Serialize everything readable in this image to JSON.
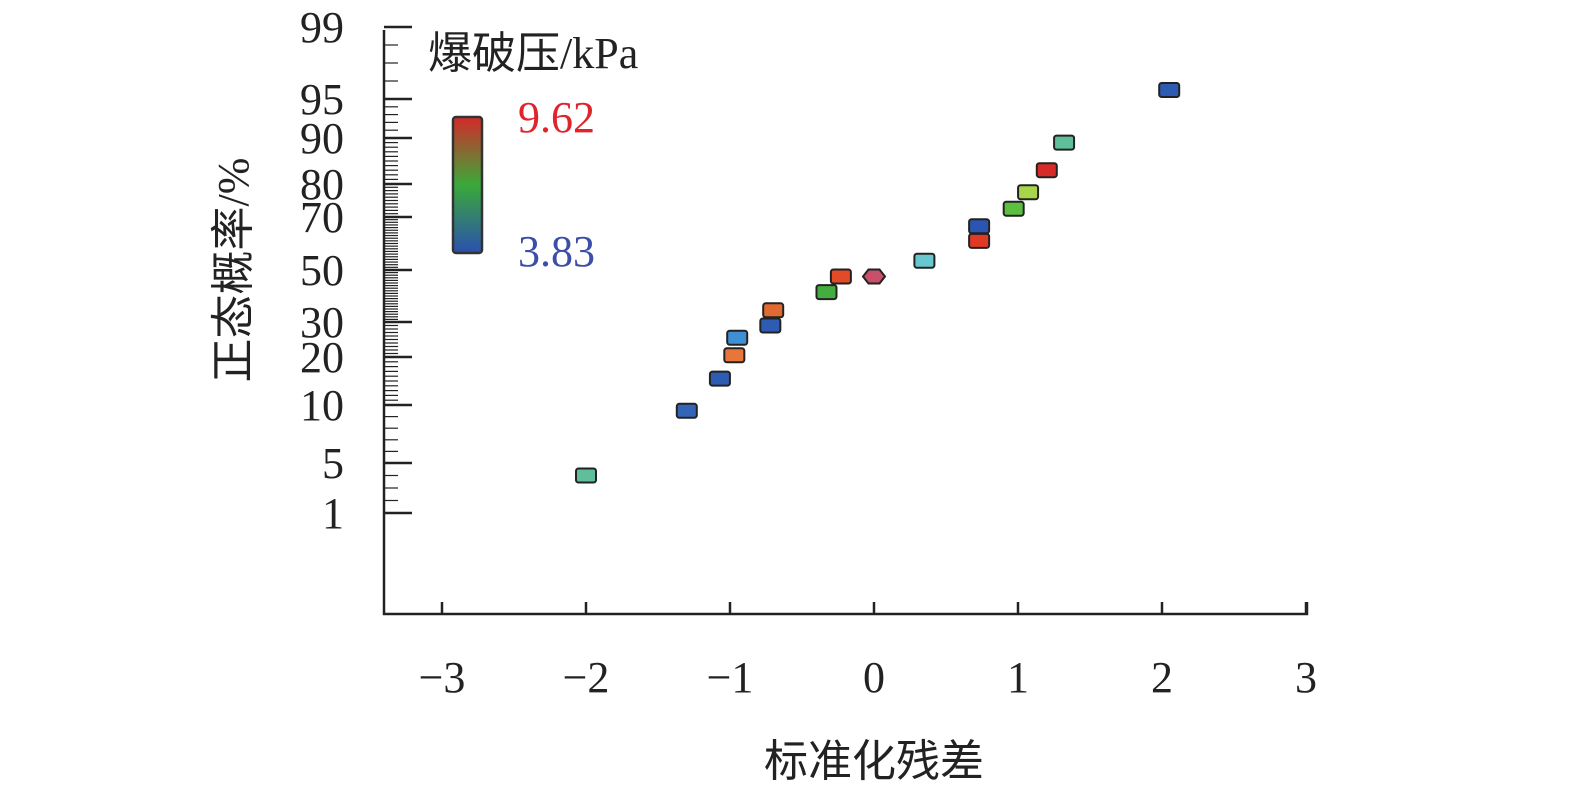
{
  "chart_data": {
    "type": "scatter",
    "title": "",
    "xlabel": "标准化残差",
    "ylabel": "正态概率/%",
    "xlim": [
      -3.4,
      3.0
    ],
    "x_ticks": [
      -3,
      -2,
      -1,
      0,
      1,
      2,
      3
    ],
    "x_tick_labels": [
      "−3",
      "−2",
      "−1",
      "0",
      "1",
      "2",
      "3"
    ],
    "y_scale": "probability",
    "y_ticks": [
      1,
      5,
      10,
      20,
      30,
      50,
      70,
      80,
      90,
      95,
      99
    ],
    "y_tick_labels": [
      "1",
      "5",
      "10",
      "20",
      "30",
      "50",
      "70",
      "80",
      "90",
      "95",
      "99"
    ],
    "colorbar": {
      "title": "爆破压/kPa",
      "max_label": "9.62",
      "min_label": "3.83",
      "max": 9.62,
      "min": 3.83,
      "colors": [
        "#d42a2a",
        "#3aa93a",
        "#2c4fb0"
      ],
      "max_color": "#e0242c",
      "min_color": "#3b4ea8"
    },
    "series": [
      {
        "points": [
          {
            "x": -2.0,
            "y": 4.0,
            "color": "#5fbf9a"
          },
          {
            "x": -1.3,
            "y": 9.5,
            "color": "#3464b8"
          },
          {
            "x": -1.07,
            "y": 15.5,
            "color": "#2f5cb3"
          },
          {
            "x": -0.97,
            "y": 20.5,
            "color": "#e8763a"
          },
          {
            "x": -0.95,
            "y": 25.5,
            "color": "#3f8fd4"
          },
          {
            "x": -0.72,
            "y": 29.0,
            "color": "#2f5cb3"
          },
          {
            "x": -0.7,
            "y": 34.5,
            "color": "#e06a32"
          },
          {
            "x": -0.33,
            "y": 41.5,
            "color": "#44ad3f"
          },
          {
            "x": -0.23,
            "y": 47.5,
            "color": "#e34a28"
          },
          {
            "x": 0.0,
            "y": 47.5,
            "color": "#c8506a",
            "shape": "hexagon"
          },
          {
            "x": 0.35,
            "y": 53.5,
            "color": "#69c7cf"
          },
          {
            "x": 0.73,
            "y": 61.0,
            "color": "#e03a26"
          },
          {
            "x": 0.73,
            "y": 66.5,
            "color": "#2b55b0"
          },
          {
            "x": 0.97,
            "y": 72.5,
            "color": "#5cbf3e"
          },
          {
            "x": 1.07,
            "y": 77.5,
            "color": "#a6d44a"
          },
          {
            "x": 1.2,
            "y": 83.0,
            "color": "#d92a2a"
          },
          {
            "x": 1.32,
            "y": 89.0,
            "color": "#5fbf9a"
          },
          {
            "x": 2.05,
            "y": 95.5,
            "color": "#2f5cb3"
          }
        ]
      }
    ]
  }
}
